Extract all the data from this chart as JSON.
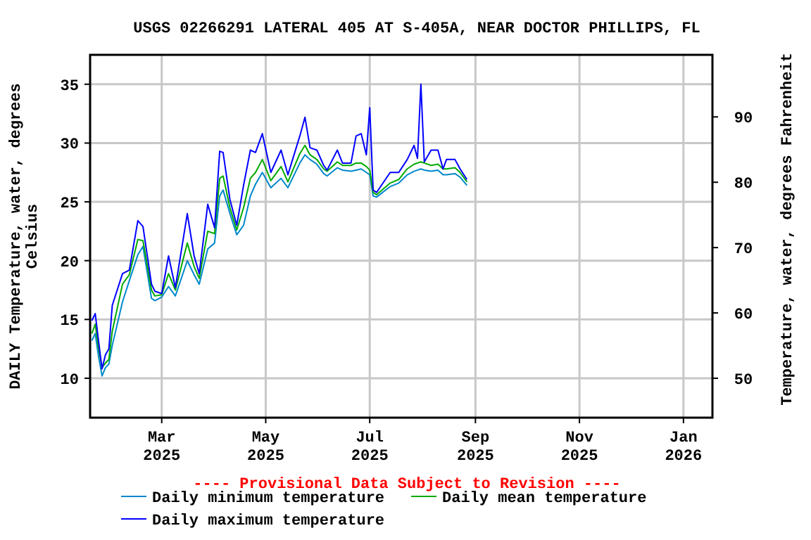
{
  "chart_data": {
    "type": "line",
    "title": "USGS 02266291 LATERAL 405 AT S-405A, NEAR DOCTOR PHILLIPS, FL",
    "ylabel": "DAILY Temperature, water, degrees Celsius",
    "y2label": "Temperature, water, degrees Fahrenheit",
    "annotations": [
      "---- Provisional Data Subject to Revision ----"
    ],
    "x": [
      "2025-01-19",
      "2025-01-21",
      "2025-01-23",
      "2025-01-25",
      "2025-01-27",
      "2025-01-29",
      "2025-01-31",
      "2025-02-06",
      "2025-02-10",
      "2025-02-15",
      "2025-02-18",
      "2025-02-23",
      "2025-02-25",
      "2025-03-01",
      "2025-03-05",
      "2025-03-09",
      "2025-03-16",
      "2025-03-20",
      "2025-03-23",
      "2025-03-28",
      "2025-04-01",
      "2025-04-04",
      "2025-04-06",
      "2025-04-10",
      "2025-04-14",
      "2025-04-18",
      "2025-04-22",
      "2025-04-25",
      "2025-04-29",
      "2025-05-04",
      "2025-05-10",
      "2025-05-14",
      "2025-05-21",
      "2025-05-24",
      "2025-05-27",
      "2025-05-31",
      "2025-06-04",
      "2025-06-06",
      "2025-06-12",
      "2025-06-15",
      "2025-06-20",
      "2025-06-23",
      "2025-06-26",
      "2025-06-29",
      "2025-07-01",
      "2025-07-03",
      "2025-07-05",
      "2025-07-13",
      "2025-07-18",
      "2025-07-23",
      "2025-07-27",
      "2025-07-29",
      "2025-07-31",
      "2025-08-02",
      "2025-08-06",
      "2025-08-10",
      "2025-08-13",
      "2025-08-15",
      "2025-08-20",
      "2025-08-23",
      "2025-08-27"
    ],
    "series": [
      {
        "name": "Daily minimum temperature",
        "color": "#0088cc",
        "values": [
          13.2,
          13.8,
          11.8,
          10.2,
          10.9,
          11.2,
          12.8,
          16.5,
          18.3,
          20.5,
          21.2,
          16.8,
          16.6,
          16.9,
          17.8,
          17.0,
          20.0,
          18.8,
          18.0,
          21.0,
          21.5,
          25.5,
          26.0,
          24.0,
          22.2,
          23.0,
          25.5,
          26.5,
          27.5,
          26.2,
          27.0,
          26.2,
          28.3,
          29.0,
          28.6,
          28.2,
          27.4,
          27.2,
          27.9,
          27.7,
          27.6,
          27.7,
          27.8,
          27.5,
          27.3,
          25.5,
          25.4,
          26.3,
          26.6,
          27.3,
          27.6,
          27.7,
          27.8,
          27.7,
          27.6,
          27.7,
          27.3,
          27.3,
          27.4,
          27.1,
          26.4
        ]
      },
      {
        "name": "Daily mean temperature",
        "color": "#00aa00",
        "values": [
          13.8,
          14.6,
          12.5,
          10.9,
          11.3,
          11.6,
          14.0,
          18.0,
          18.8,
          21.8,
          21.7,
          17.5,
          17.0,
          17.1,
          18.9,
          17.5,
          21.5,
          19.5,
          18.5,
          22.5,
          22.3,
          27.0,
          27.2,
          24.5,
          22.6,
          24.5,
          27.0,
          27.5,
          28.6,
          26.8,
          28.0,
          26.7,
          29.1,
          29.8,
          29.0,
          28.6,
          27.8,
          27.6,
          28.4,
          28.1,
          28.1,
          28.3,
          28.3,
          28.0,
          27.7,
          25.8,
          25.6,
          26.6,
          26.9,
          27.8,
          28.2,
          28.3,
          28.4,
          28.3,
          28.1,
          28.2,
          27.8,
          27.8,
          27.9,
          27.5,
          26.7
        ]
      },
      {
        "name": "Daily maximum temperature",
        "color": "#0000ff",
        "values": [
          14.9,
          15.5,
          13.1,
          10.8,
          12.0,
          12.5,
          16.2,
          18.9,
          19.2,
          23.4,
          22.9,
          18.0,
          17.4,
          17.2,
          20.4,
          17.7,
          24.0,
          20.4,
          18.9,
          24.8,
          22.8,
          29.3,
          29.2,
          25.2,
          23.0,
          26.4,
          29.4,
          29.2,
          30.8,
          27.5,
          29.4,
          27.3,
          30.6,
          32.2,
          29.6,
          29.4,
          28.1,
          27.7,
          29.4,
          28.3,
          28.3,
          30.6,
          30.8,
          29.0,
          33.0,
          26.0,
          25.8,
          27.5,
          27.5,
          28.6,
          29.8,
          28.7,
          35.0,
          28.4,
          29.4,
          29.4,
          27.8,
          28.6,
          28.6,
          27.8,
          26.9
        ]
      }
    ],
    "xlim": [
      "2025-01-18",
      "2026-01-18"
    ],
    "xticks": [
      {
        "value": "2025-03-01",
        "label": "Mar 2025"
      },
      {
        "value": "2025-05-01",
        "label": "May 2025"
      },
      {
        "value": "2025-07-01",
        "label": "Jul 2025"
      },
      {
        "value": "2025-09-01",
        "label": "Sep 2025"
      },
      {
        "value": "2025-11-01",
        "label": "Nov 2025"
      },
      {
        "value": "2026-01-01",
        "label": "Jan 2026"
      }
    ],
    "ylim": [
      6.65,
      37.5
    ],
    "yticks": [
      10,
      15,
      20,
      25,
      30,
      35
    ],
    "y2lim": [
      43.97,
      99.5
    ],
    "y2ticks": [
      50,
      60,
      70,
      80,
      90
    ],
    "grid": true,
    "legend": "bottom",
    "marker": "none",
    "line_style": "solid"
  }
}
